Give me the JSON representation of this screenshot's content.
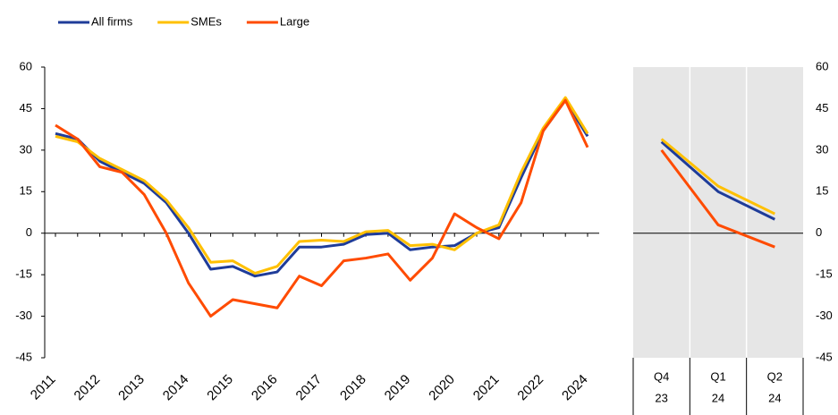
{
  "chart_data": [
    {
      "type": "line",
      "categories": [
        "2011",
        null,
        "2012",
        null,
        "2013",
        null,
        "2014",
        null,
        "2015",
        null,
        "2016",
        null,
        "2017",
        null,
        "2018",
        null,
        "2019",
        null,
        "2020",
        null,
        "2021",
        null,
        "2022",
        null,
        "2024"
      ],
      "series": [
        {
          "name": "All firms",
          "color": "#1f3c99",
          "values": [
            36,
            34,
            26,
            22,
            18,
            11,
            0,
            -13,
            -12,
            -15.5,
            -14,
            -5,
            -5,
            -4,
            -0.5,
            0,
            -6,
            -5,
            -4.5,
            0,
            2,
            20,
            37,
            48,
            35
          ]
        },
        {
          "name": "SMEs",
          "color": "#ffc000",
          "values": [
            35,
            33,
            27,
            23,
            19,
            12,
            2,
            -10.5,
            -10,
            -14.5,
            -12,
            -3,
            -2.5,
            -3,
            0.5,
            1,
            -4.5,
            -4,
            -6,
            0,
            3,
            22,
            38,
            49,
            36
          ]
        },
        {
          "name": "Large",
          "color": "#ff4b00",
          "values": [
            39,
            34,
            24,
            22,
            14,
            0,
            -18,
            -30,
            -24,
            -25.5,
            -27,
            -15.5,
            -19,
            -10,
            -9,
            -7.5,
            -17,
            -9,
            7,
            2,
            -2,
            11,
            37,
            48,
            31
          ]
        }
      ],
      "ylim": [
        -45,
        60
      ],
      "yticks": [
        -45,
        -30,
        -15,
        0,
        15,
        30,
        45,
        60
      ],
      "legend": "top-left"
    },
    {
      "type": "line",
      "categories": [
        [
          "Q4",
          "23"
        ],
        [
          "Q1",
          "24"
        ],
        [
          "Q2",
          "24"
        ]
      ],
      "series": [
        {
          "color": "#1f3c99",
          "values": [
            33,
            15,
            5
          ]
        },
        {
          "color": "#ffc000",
          "values": [
            34,
            17,
            7
          ]
        },
        {
          "color": "#ff4b00",
          "values": [
            30,
            3,
            -5
          ]
        }
      ],
      "ylim": [
        -45,
        60
      ],
      "yticks": [
        -45,
        -30,
        -15,
        0,
        15,
        30,
        45,
        60
      ],
      "yaxis_side": "right",
      "background": "#e6e6e6"
    }
  ]
}
